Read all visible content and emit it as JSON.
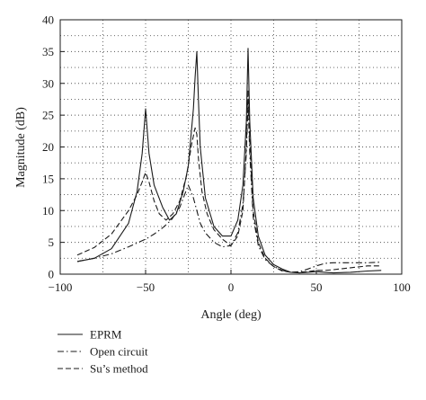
{
  "chart_data": {
    "type": "line",
    "title": "",
    "xlabel": "Angle (deg)",
    "ylabel": "Magnitude (dB)",
    "xlim": [
      -100,
      100
    ],
    "ylim": [
      0,
      40
    ],
    "xticks": [
      -100,
      -50,
      0,
      50,
      100
    ],
    "yticks": [
      0,
      5,
      10,
      15,
      20,
      25,
      30,
      35,
      40
    ],
    "grid": "dotted",
    "legend_position": "bottom-left",
    "series": [
      {
        "name": "EPRM",
        "style": "solid",
        "x": [
          -90,
          -80,
          -70,
          -60,
          -55,
          -52,
          -50,
          -48,
          -45,
          -40,
          -36,
          -32,
          -28,
          -25,
          -22,
          -21,
          -20,
          -19,
          -18,
          -15,
          -10,
          -5,
          0,
          4,
          7,
          9,
          10,
          11,
          13,
          16,
          20,
          25,
          30,
          35,
          40,
          45,
          50,
          55,
          60,
          70,
          80,
          88
        ],
        "y": [
          2.0,
          2.5,
          4.0,
          8.0,
          13.0,
          19.0,
          26.0,
          19.0,
          14.0,
          10.5,
          8.5,
          9.5,
          13.0,
          17.0,
          26.0,
          31.0,
          35.0,
          27.0,
          20.0,
          12.0,
          7.5,
          6.0,
          6.0,
          8.5,
          14.0,
          24.0,
          35.5,
          24.0,
          12.0,
          6.0,
          3.0,
          1.5,
          0.8,
          0.3,
          0.2,
          0.3,
          0.4,
          0.3,
          0.2,
          0.3,
          0.5,
          0.6
        ]
      },
      {
        "name": "Open circuit",
        "style": "dash-dot",
        "x": [
          -90,
          -80,
          -70,
          -60,
          -50,
          -45,
          -40,
          -35,
          -30,
          -25,
          -22,
          -20,
          -18,
          -15,
          -10,
          -5,
          0,
          4,
          7,
          9,
          10,
          11,
          13,
          16,
          20,
          25,
          30,
          35,
          40,
          45,
          50,
          55,
          60,
          70,
          80,
          88
        ],
        "y": [
          2.0,
          2.5,
          3.2,
          4.3,
          5.5,
          6.3,
          7.3,
          8.5,
          10.5,
          14.0,
          12.0,
          10.0,
          8.0,
          6.5,
          5.0,
          4.3,
          4.5,
          6.5,
          11.0,
          19.0,
          27.0,
          19.0,
          9.0,
          4.5,
          2.3,
          1.2,
          0.6,
          0.3,
          0.4,
          0.8,
          1.3,
          1.7,
          1.8,
          1.8,
          1.8,
          1.9
        ]
      },
      {
        "name": "Su’s method",
        "style": "dashed",
        "x": [
          -90,
          -80,
          -70,
          -60,
          -55,
          -52,
          -50,
          -48,
          -45,
          -42,
          -38,
          -34,
          -30,
          -26,
          -23,
          -21,
          -20,
          -19,
          -17,
          -14,
          -10,
          -5,
          0,
          4,
          7,
          9,
          10,
          11,
          13,
          16,
          20,
          25,
          30,
          35,
          40,
          45,
          50,
          55,
          60,
          70,
          80,
          88
        ],
        "y": [
          3.0,
          4.2,
          6.3,
          10.0,
          12.5,
          14.5,
          16.0,
          14.5,
          11.5,
          9.5,
          8.5,
          9.5,
          11.5,
          15.5,
          20.5,
          23.0,
          22.0,
          18.0,
          13.0,
          9.5,
          7.0,
          5.5,
          4.5,
          6.0,
          10.0,
          20.0,
          29.0,
          21.0,
          10.0,
          5.0,
          2.5,
          1.2,
          0.5,
          0.3,
          0.3,
          0.4,
          0.6,
          0.6,
          0.7,
          1.0,
          1.3,
          1.3
        ]
      }
    ]
  }
}
